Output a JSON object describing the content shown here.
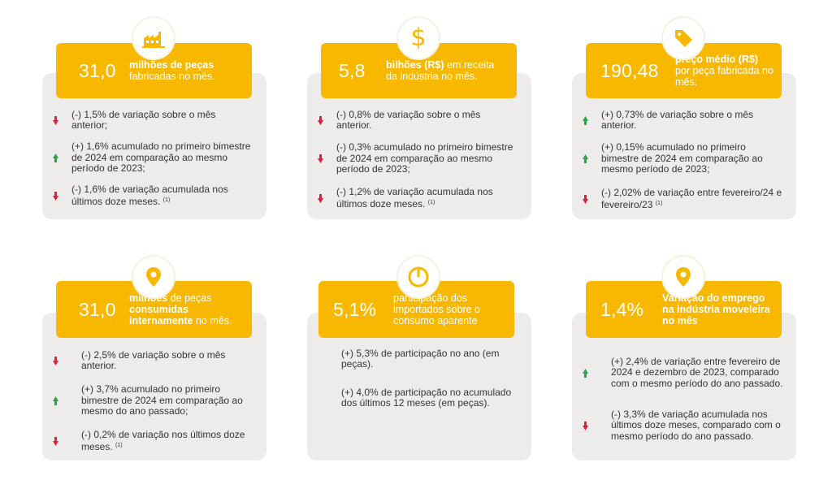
{
  "colors": {
    "accent": "#f9b800",
    "card_bg": "#eeeceb",
    "up": "#2aa24a",
    "down": "#e0203a"
  },
  "cards": [
    {
      "icon": "factory-icon",
      "value": "31,0",
      "header_bold": "milhões de peças",
      "header_rest": "fabricadas no mês.",
      "items": [
        {
          "dir": "down",
          "text": "(-) 1,5% de variação sobre o mês anterior;",
          "note": ""
        },
        {
          "dir": "up",
          "text": "(+) 1,6% acumulado no primeiro bimestre de 2024 em comparação ao mesmo período de 2023;",
          "note": ""
        },
        {
          "dir": "down",
          "text": "(-) 1,6% de variação acumulada nos últimos doze meses.",
          "note": "(1)"
        }
      ]
    },
    {
      "icon": "dollar-icon",
      "value": "5,8",
      "header_bold": "bilhões (R$)",
      "header_rest": " em receita da indústria no mês.",
      "items": [
        {
          "dir": "down",
          "text": "(-) 0,8% de variação sobre o mês anterior.",
          "note": ""
        },
        {
          "dir": "down",
          "text": "(-) 0,3% acumulado no primeiro bimestre de 2024 em comparação ao mesmo período de 2023;",
          "note": ""
        },
        {
          "dir": "down",
          "text": "(-) 1,2% de variação acumulada nos últimos doze meses.",
          "note": "(1)"
        }
      ]
    },
    {
      "icon": "price-tag-icon",
      "value": "190,48",
      "header_bold": "preço médio (R$)",
      "header_rest": "por peça  fabricada no mês.",
      "items": [
        {
          "dir": "up",
          "text": "(+) 0,73% de variação sobre o mês anterior.",
          "note": ""
        },
        {
          "dir": "up",
          "text": "(+) 0,15% acumulado no primeiro bimestre de 2024 em comparação ao mesmo período de 2023;",
          "note": ""
        },
        {
          "dir": "down",
          "text": "(-) 2,02% de variação entre fevereiro/24 e fevereiro/23",
          "note": "(1)"
        }
      ]
    },
    {
      "icon": "location-pin-icon",
      "value": "31,0",
      "header_html": "<b>milhões</b> de peças <b>consumidas internamente</b> no mês.",
      "items": [
        {
          "dir": "down",
          "text": "(-) 2,5% de variação sobre o mês anterior.",
          "note": ""
        },
        {
          "dir": "up",
          "text": "(+) 3,7% acumulado no primeiro bimestre de 2024 em comparação ao mesmo do ano passado;",
          "note": ""
        },
        {
          "dir": "down",
          "text": "(-) 0,2% de variação nos últimos doze meses.",
          "note": "(1)"
        }
      ]
    },
    {
      "icon": "pie-chart-icon",
      "value": "5,1%",
      "header_bold": "",
      "header_rest": "participação dos importados sobre o consumo aparente",
      "items": [
        {
          "dir": "none",
          "text": "(+) 5,3% de participação no ano (em peças).",
          "note": ""
        },
        {
          "dir": "none",
          "text": "(+) 4,0% de participação no acumulado dos últimos 12 meses (em peças).",
          "note": ""
        }
      ]
    },
    {
      "icon": "location-pin-icon",
      "value": "1,4%",
      "header_bold": "Variação do emprego na indústria moveleira no mês",
      "header_rest": "",
      "items": [
        {
          "dir": "up",
          "text": "(+) 2,4% de variação entre fevereiro de 2024 e dezembro de 2023, comparado com o mesmo período do ano passado.",
          "note": ""
        },
        {
          "dir": "down",
          "text": "(-) 3,3% de variação acumulada nos últimos doze meses, comparado com o mesmo período do ano passado.",
          "note": ""
        }
      ]
    }
  ]
}
